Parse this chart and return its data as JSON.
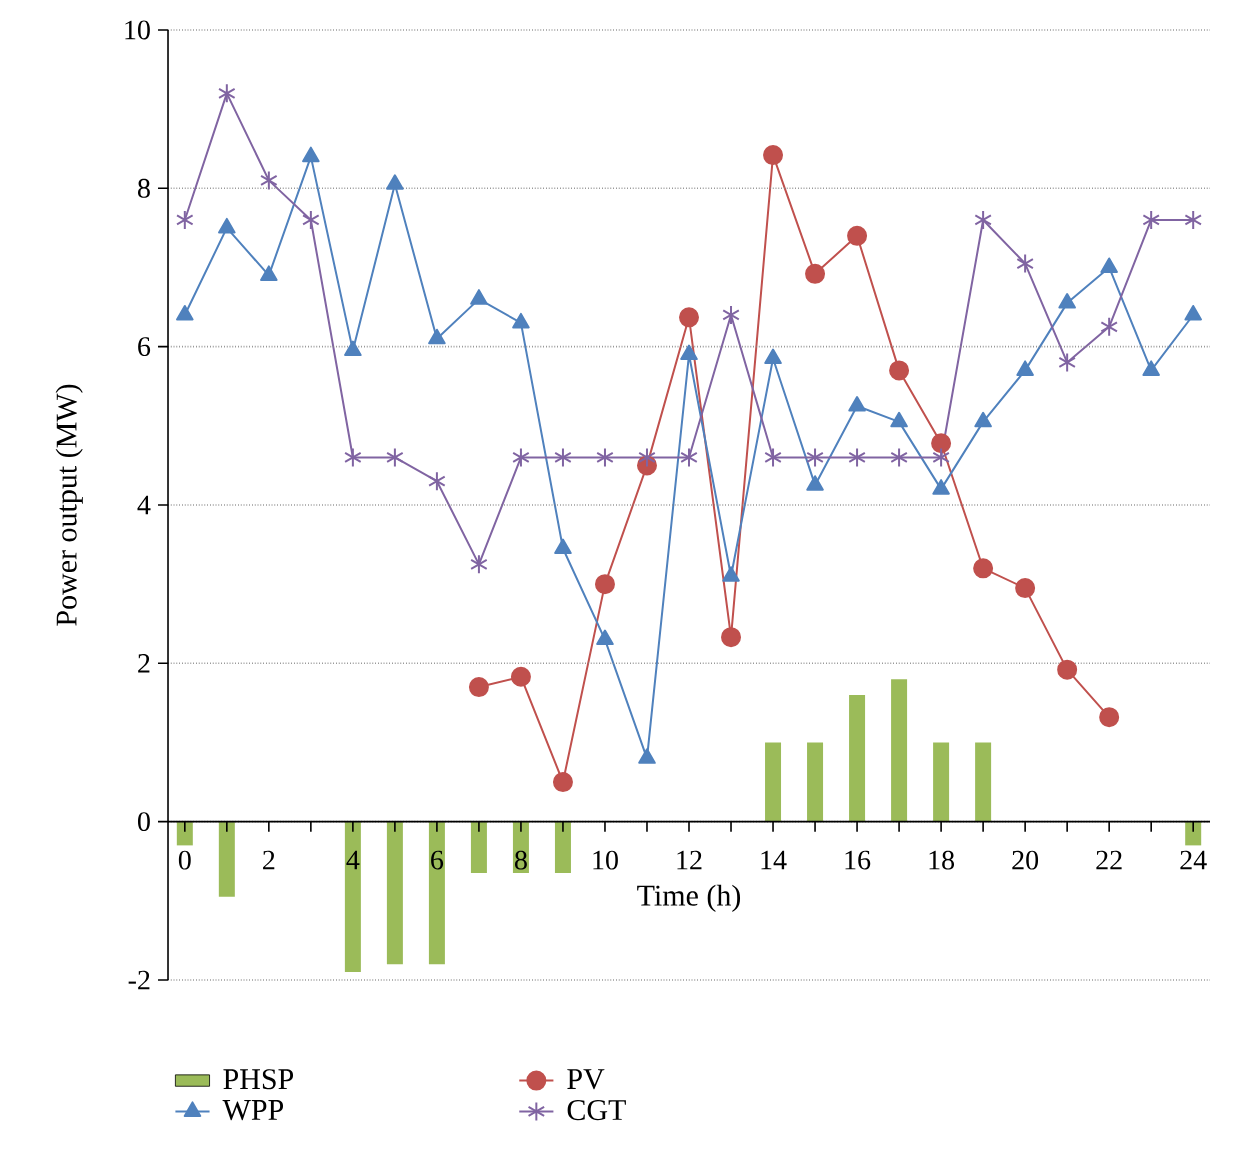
{
  "chart_data": {
    "type": "line",
    "xlabel": "Time (h)",
    "ylabel": "Power output (MW)",
    "x": [
      0,
      1,
      2,
      3,
      4,
      5,
      6,
      7,
      8,
      9,
      10,
      11,
      12,
      13,
      14,
      15,
      16,
      17,
      18,
      19,
      20,
      21,
      22,
      23,
      24
    ],
    "xlim": [
      -0.4,
      24.4
    ],
    "xticks": [
      0,
      {
        "value": 1,
        "label": null
      },
      2,
      {
        "value": 3,
        "label": null
      },
      4,
      {
        "value": 5,
        "label": null
      },
      6,
      {
        "value": 7,
        "label": null
      },
      8,
      {
        "value": 9,
        "label": null
      },
      10,
      {
        "value": 11,
        "label": null
      },
      12,
      {
        "value": 13,
        "label": null
      },
      14,
      {
        "value": 15,
        "label": null
      },
      16,
      {
        "value": 17,
        "label": null
      },
      18,
      {
        "value": 19,
        "label": null
      },
      20,
      {
        "value": 21,
        "label": null
      },
      22,
      {
        "value": 23,
        "label": null
      },
      24
    ],
    "ylim": [
      -2,
      10
    ],
    "yticks": [
      -2,
      0,
      2,
      4,
      6,
      8,
      10
    ],
    "grid": "y",
    "legend": "bottom",
    "series": [
      {
        "name": "PHSP",
        "type": "bar",
        "color": "#9bbb59",
        "values": [
          -0.3,
          -0.95,
          0,
          0,
          -1.9,
          -1.8,
          -1.8,
          -0.65,
          -0.65,
          -0.65,
          0,
          0,
          0,
          0,
          1,
          1,
          1.6,
          1.8,
          1,
          1,
          0,
          0,
          0,
          0,
          -0.3
        ]
      },
      {
        "name": "PV",
        "marker": "circle",
        "color": "#c0504d",
        "x": [
          7,
          8,
          9,
          10,
          11,
          12,
          13,
          14,
          15,
          16,
          17,
          18,
          19,
          20,
          21,
          22
        ],
        "values": [
          1.7,
          1.83,
          0.5,
          3.0,
          4.5,
          6.37,
          2.33,
          8.42,
          6.92,
          7.4,
          5.7,
          4.78,
          3.2,
          2.95,
          1.92,
          1.32
        ]
      },
      {
        "name": "WPP",
        "marker": "triangle",
        "color": "#4f81bd",
        "values": [
          6.4,
          7.5,
          6.9,
          8.4,
          5.95,
          8.05,
          6.1,
          6.6,
          6.3,
          3.45,
          2.3,
          0.8,
          5.9,
          3.1,
          5.85,
          4.25,
          5.25,
          5.05,
          4.2,
          5.05,
          5.7,
          6.55,
          7.0,
          5.7,
          6.4
        ]
      },
      {
        "name": "CGT",
        "marker": "cross",
        "color": "#8064a2",
        "values": [
          7.6,
          9.2,
          8.1,
          7.6,
          4.6,
          4.6,
          4.3,
          3.25,
          4.6,
          4.6,
          4.6,
          4.6,
          4.6,
          6.4,
          4.6,
          4.6,
          4.6,
          4.6,
          4.6,
          7.6,
          7.05,
          5.8,
          6.25,
          7.6,
          7.6
        ]
      }
    ]
  }
}
